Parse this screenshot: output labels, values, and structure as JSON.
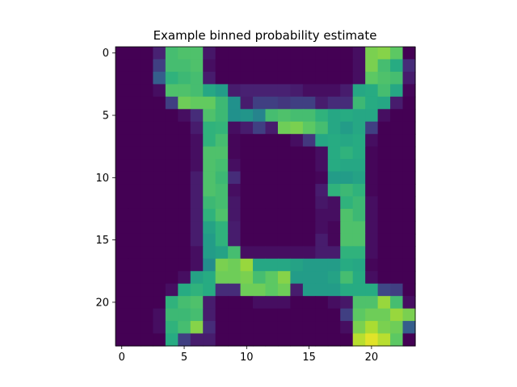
{
  "chart_data": {
    "type": "heatmap",
    "title": "Example binned probability estimate",
    "xlabel": "",
    "ylabel": "",
    "colormap": "viridis",
    "value_range": [
      0,
      1
    ],
    "grid": false,
    "xlim": [
      -0.5,
      23.5
    ],
    "ylim": [
      23.5,
      -0.5
    ],
    "x_ticks": [
      0,
      5,
      10,
      15,
      20
    ],
    "y_ticks": [
      0,
      5,
      10,
      15,
      20
    ],
    "rows": 24,
    "cols": 24,
    "values": [
      [
        0,
        0,
        0,
        0.12,
        0.7,
        0.72,
        0.72,
        0.08,
        0,
        0,
        0,
        0,
        0,
        0,
        0,
        0,
        0,
        0,
        0,
        0.05,
        0.8,
        0.82,
        0.75,
        0
      ],
      [
        0,
        0,
        0,
        0.2,
        0.7,
        0.7,
        0.72,
        0.05,
        0,
        0,
        0,
        0,
        0,
        0,
        0,
        0,
        0,
        0,
        0,
        0.05,
        0.8,
        0.7,
        0.62,
        0.15
      ],
      [
        0,
        0,
        0,
        0.3,
        0.65,
        0.68,
        0.7,
        0.1,
        0,
        0,
        0,
        0,
        0,
        0,
        0,
        0,
        0,
        0,
        0,
        0.05,
        0.75,
        0.72,
        0.7,
        0.1
      ],
      [
        0,
        0,
        0,
        0.05,
        0.72,
        0.72,
        0.7,
        0.6,
        0.55,
        0.1,
        0.12,
        0.12,
        0.12,
        0.12,
        0.1,
        0.05,
        0.05,
        0.05,
        0.1,
        0.6,
        0.62,
        0.7,
        0.6,
        0.02
      ],
      [
        0,
        0,
        0,
        0,
        0.2,
        0.78,
        0.76,
        0.76,
        0.68,
        0.5,
        0.1,
        0.2,
        0.2,
        0.18,
        0.2,
        0.2,
        0.1,
        0.15,
        0.15,
        0.68,
        0.62,
        0.6,
        0.1,
        0
      ],
      [
        0,
        0,
        0,
        0,
        0,
        0.05,
        0.15,
        0.72,
        0.68,
        0.5,
        0.52,
        0.45,
        0.7,
        0.72,
        0.7,
        0.7,
        0.65,
        0.6,
        0.62,
        0.6,
        0.6,
        0.05,
        0,
        0
      ],
      [
        0,
        0,
        0,
        0,
        0,
        0,
        0.1,
        0.65,
        0.66,
        0.05,
        0.1,
        0.2,
        0.1,
        0.78,
        0.8,
        0.75,
        0.7,
        0.6,
        0.55,
        0.6,
        0.2,
        0,
        0,
        0
      ],
      [
        0,
        0,
        0,
        0,
        0,
        0,
        0.05,
        0.65,
        0.7,
        0.02,
        0,
        0,
        0,
        0,
        0.05,
        0.18,
        0.6,
        0.62,
        0.6,
        0.62,
        0.05,
        0,
        0,
        0
      ],
      [
        0,
        0,
        0,
        0,
        0,
        0,
        0.05,
        0.72,
        0.72,
        0.02,
        0,
        0,
        0,
        0,
        0,
        0,
        0.05,
        0.62,
        0.65,
        0.62,
        0.02,
        0,
        0,
        0
      ],
      [
        0,
        0,
        0,
        0,
        0,
        0,
        0.05,
        0.72,
        0.7,
        0.05,
        0,
        0,
        0,
        0,
        0,
        0,
        0.05,
        0.62,
        0.6,
        0.6,
        0.02,
        0,
        0,
        0
      ],
      [
        0,
        0,
        0,
        0,
        0,
        0,
        0.1,
        0.72,
        0.68,
        0.15,
        0,
        0,
        0,
        0,
        0,
        0,
        0.02,
        0.55,
        0.55,
        0.58,
        0.02,
        0,
        0,
        0
      ],
      [
        0,
        0,
        0,
        0,
        0,
        0,
        0.1,
        0.72,
        0.7,
        0.05,
        0,
        0,
        0,
        0,
        0,
        0,
        0.1,
        0.65,
        0.68,
        0.65,
        0.02,
        0,
        0,
        0
      ],
      [
        0,
        0,
        0,
        0,
        0,
        0,
        0.1,
        0.68,
        0.7,
        0.08,
        0,
        0,
        0,
        0,
        0,
        0,
        0.08,
        0.05,
        0.65,
        0.68,
        0.05,
        0,
        0,
        0
      ],
      [
        0,
        0,
        0,
        0,
        0,
        0,
        0.1,
        0.65,
        0.72,
        0.08,
        0,
        0,
        0,
        0,
        0,
        0,
        0.05,
        0.05,
        0.72,
        0.68,
        0.05,
        0,
        0,
        0
      ],
      [
        0,
        0,
        0,
        0,
        0,
        0,
        0.1,
        0.58,
        0.65,
        0.1,
        0,
        0,
        0,
        0,
        0,
        0,
        0.05,
        0.02,
        0.72,
        0.72,
        0.05,
        0,
        0,
        0
      ],
      [
        0,
        0,
        0,
        0,
        0,
        0,
        0.1,
        0.55,
        0.65,
        0.1,
        0,
        0,
        0,
        0,
        0,
        0,
        0.1,
        0.02,
        0.72,
        0.72,
        0.05,
        0,
        0,
        0
      ],
      [
        0,
        0,
        0,
        0,
        0,
        0,
        0.05,
        0.55,
        0.58,
        0.7,
        0.05,
        0.05,
        0.05,
        0.05,
        0.05,
        0.05,
        0.1,
        0.1,
        0.65,
        0.65,
        0.05,
        0,
        0,
        0
      ],
      [
        0,
        0,
        0,
        0,
        0,
        0,
        0.05,
        0.48,
        0.8,
        0.78,
        0.85,
        0.6,
        0.6,
        0.6,
        0.58,
        0.55,
        0.55,
        0.55,
        0.62,
        0.6,
        0.02,
        0,
        0,
        0
      ],
      [
        0,
        0,
        0,
        0,
        0,
        0.05,
        0.58,
        0.62,
        0.78,
        0.78,
        0.8,
        0.7,
        0.75,
        0.82,
        0.55,
        0.55,
        0.55,
        0.58,
        0.7,
        0.62,
        0.05,
        0,
        0,
        0
      ],
      [
        0,
        0,
        0,
        0,
        0.05,
        0.62,
        0.65,
        0.62,
        0.15,
        0.15,
        0.78,
        0.78,
        0.75,
        0.78,
        0.1,
        0.55,
        0.55,
        0.55,
        0.62,
        0.62,
        0.62,
        0.22,
        0.2,
        0
      ],
      [
        0,
        0,
        0,
        0,
        0.65,
        0.7,
        0.72,
        0.1,
        0,
        0,
        0,
        0.05,
        0.05,
        0.05,
        0,
        0,
        0,
        0.05,
        0.08,
        0.72,
        0.72,
        0.85,
        0.7,
        0.05
      ],
      [
        0,
        0,
        0,
        0.05,
        0.68,
        0.68,
        0.7,
        0.1,
        0,
        0,
        0,
        0,
        0,
        0,
        0,
        0,
        0,
        0,
        0.2,
        0.75,
        0.78,
        0.78,
        0.85,
        0.8
      ],
      [
        0,
        0,
        0,
        0.05,
        0.65,
        0.7,
        0.82,
        0.15,
        0,
        0,
        0,
        0,
        0,
        0,
        0,
        0,
        0,
        0,
        0.05,
        0.8,
        0.88,
        0.8,
        0.78,
        0.3
      ],
      [
        0,
        0,
        0,
        0,
        0.62,
        0.2,
        0.1,
        0.1,
        0,
        0,
        0,
        0,
        0,
        0,
        0,
        0,
        0,
        0,
        0,
        0.9,
        0.96,
        0.9,
        0.75,
        0
      ]
    ]
  }
}
